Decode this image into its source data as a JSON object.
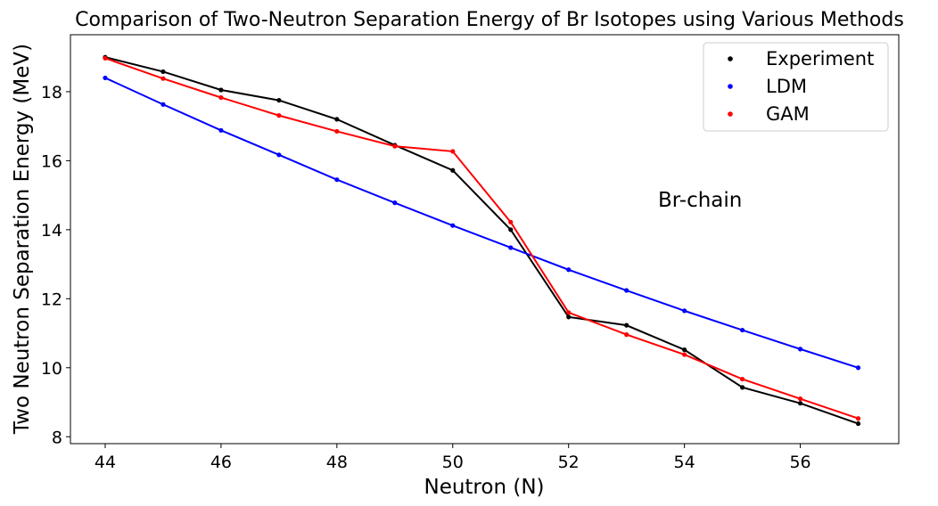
{
  "chart_data": {
    "type": "line",
    "title": "Comparison of Two-Neutron Separation Energy of Br Isotopes using Various Methods",
    "xlabel": "Neutron (N)",
    "ylabel": "Two Neutron Separation Energy (MeV)",
    "xlim": [
      43.4,
      57.7
    ],
    "ylim": [
      7.8,
      19.65
    ],
    "xticks": [
      44,
      46,
      48,
      50,
      52,
      54,
      56
    ],
    "yticks": [
      8,
      10,
      12,
      14,
      16,
      18
    ],
    "grid": false,
    "legend_position": "top-right",
    "annotation": "Br-chain",
    "x": [
      44,
      45,
      46,
      47,
      48,
      49,
      50,
      51,
      52,
      53,
      54,
      55,
      56,
      57
    ],
    "series": [
      {
        "name": "Experiment",
        "color": "#000000",
        "values": [
          19.0,
          18.58,
          18.05,
          17.75,
          17.2,
          16.45,
          15.72,
          14.0,
          11.47,
          11.23,
          10.52,
          9.43,
          8.97,
          8.38
        ]
      },
      {
        "name": "LDM",
        "color": "#0000ff",
        "values": [
          18.4,
          17.63,
          16.88,
          16.17,
          15.45,
          14.78,
          14.12,
          13.48,
          12.84,
          12.24,
          11.65,
          11.09,
          10.54,
          10.0
        ]
      },
      {
        "name": "GAM",
        "color": "#ff0000",
        "values": [
          18.97,
          18.38,
          17.83,
          17.31,
          16.85,
          16.42,
          16.27,
          14.22,
          11.6,
          10.96,
          10.38,
          9.67,
          9.1,
          8.53
        ]
      }
    ]
  }
}
